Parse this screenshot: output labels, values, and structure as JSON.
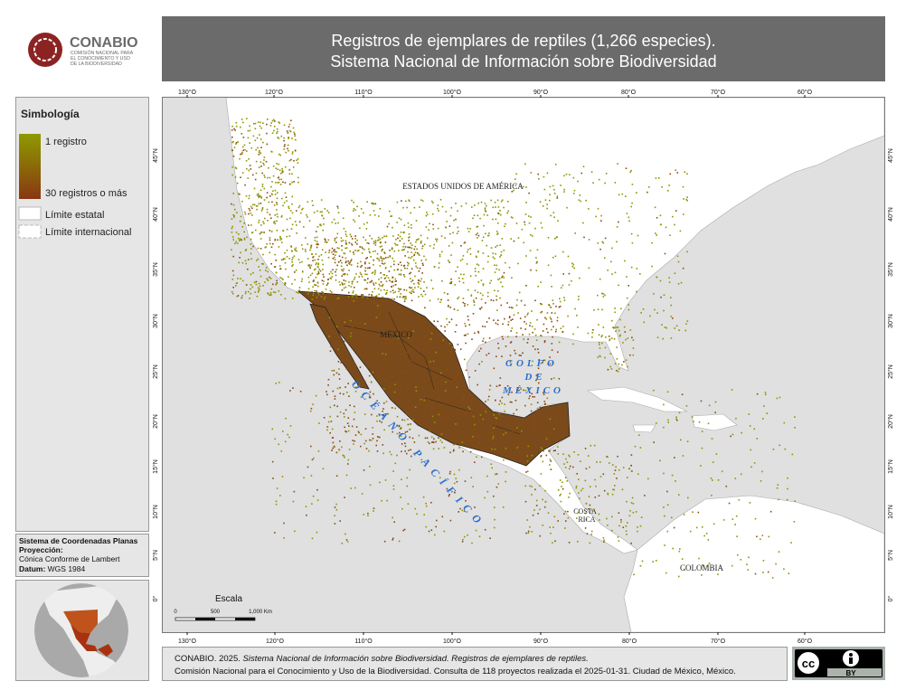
{
  "logo": {
    "name": "CONABIO",
    "subtitle": [
      "COMISIÓN NACIONAL PARA",
      "EL CONOCIMIENTO Y USO",
      "DE LA BIODIVERSIDAD"
    ]
  },
  "header": {
    "title": "Registros de ejemplares de reptiles (1,266 especies).",
    "subtitle": "Sistema Nacional de Información sobre Biodiversidad"
  },
  "legend": {
    "title": "Simbología",
    "min_label": "1 registro",
    "max_label": "30 registros o más",
    "state_limit": "Límite estatal",
    "international_limit": "Límite internacional"
  },
  "coordinates": {
    "system": "Sistema de Coordenadas Planas",
    "projection_label": "Proyección:",
    "projection": "Cónica Conforme de Lambert",
    "datum_label": "Datum:",
    "datum": "WGS 1984"
  },
  "scale": {
    "title": "Escala",
    "labels": [
      "0",
      "500",
      "1,000 Km"
    ]
  },
  "map": {
    "longitudes": [
      "130°O",
      "120°O",
      "110°O",
      "100°O",
      "90°O",
      "80°O",
      "70°O",
      "60°O"
    ],
    "latitudes": [
      "45°N",
      "40°N",
      "35°N",
      "30°N",
      "25°N",
      "20°N",
      "15°N",
      "10°N",
      "5°N",
      "0°"
    ],
    "labels": {
      "usa": "ESTADOS UNIDOS DE AMÉRICA",
      "mexico": "MÉXICO",
      "gulf": [
        "GOLFO",
        "DE",
        "MÉXICO"
      ],
      "ocean": "OCÉANO PACÍFICO",
      "costa_rica": [
        "COSTA",
        "RICA"
      ],
      "colombia": "COLOMBIA"
    }
  },
  "footer": {
    "line1_prefix": "CONABIO. 2025. ",
    "line1_italic": "Sistema Nacional de Información sobre Biodiversidad. Registros de ejemplares de reptiles.",
    "line2": "Comisión Nacional para el Conocimiento y Uso de la Biodiversidad. Consulta de 118 proyectos realizada el 2025-01-31. Ciudad de México, México."
  },
  "license": {
    "cc": "cc",
    "by": "BY"
  }
}
